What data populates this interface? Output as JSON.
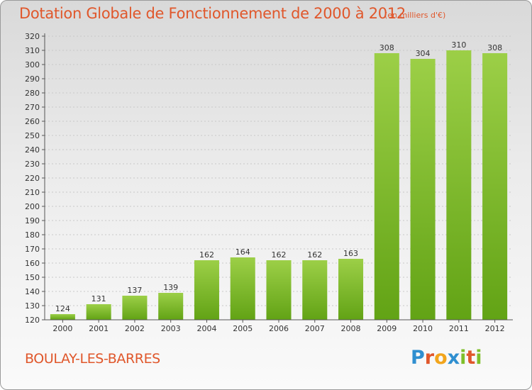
{
  "header": {
    "title": "Dotation Globale de Fonctionnement de 2000 à 2012",
    "unit": "(en milliers d'€)"
  },
  "footer": {
    "commune": "BOULAY-LES-BARRES",
    "logo_letters": [
      "P",
      "r",
      "o",
      "x",
      "i",
      "t",
      "i"
    ],
    "logo_colors": [
      "#2f8fd0",
      "#e0572b",
      "#f2a51c",
      "#2f8fd0",
      "#7fbf2a",
      "#e0572b",
      "#7fbf2a"
    ]
  },
  "colors": {
    "bar_top": "#9ccf47",
    "bar_bottom": "#62a315",
    "axis": "#555555",
    "grid": "#c8c8c8"
  },
  "chart_data": {
    "type": "bar",
    "categories": [
      "2000",
      "2001",
      "2002",
      "2003",
      "2004",
      "2005",
      "2006",
      "2007",
      "2008",
      "2009",
      "2010",
      "2011",
      "2012"
    ],
    "values": [
      124,
      131,
      137,
      139,
      162,
      164,
      162,
      162,
      163,
      308,
      304,
      310,
      308
    ],
    "title": "Dotation Globale de Fonctionnement de 2000 à 2012",
    "subtitle": "(en milliers d'€)",
    "xlabel": "",
    "ylabel": "",
    "ylim": [
      120,
      320
    ],
    "ytick_step": 10,
    "grid": true,
    "data_labels": true
  }
}
